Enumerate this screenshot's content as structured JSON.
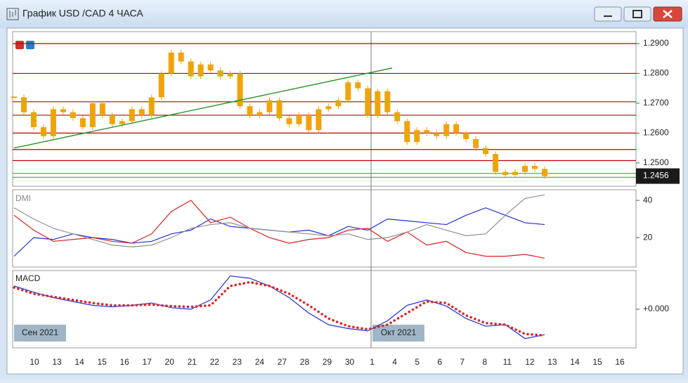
{
  "window": {
    "title": "График USD /CAD  4 ЧАСА"
  },
  "x_labels": [
    "10",
    "13",
    "14",
    "15",
    "16",
    "17",
    "20",
    "21",
    "22",
    "23",
    "24",
    "27",
    "28",
    "29",
    "30",
    "1",
    "4",
    "5",
    "6",
    "7",
    "8",
    "11",
    "12",
    "13",
    "14",
    "15",
    "16"
  ],
  "period_labels": [
    "Сен 2021",
    "Окт 2021"
  ],
  "chart_data": [
    {
      "type": "candlestick",
      "color": "#f0a30a",
      "ylim": [
        1.2422,
        1.294
      ],
      "yticks": [
        {
          "value": 1.29,
          "label": "1.2900"
        },
        {
          "value": 1.28,
          "label": "1.2800"
        },
        {
          "value": 1.27,
          "label": "1.2700"
        },
        {
          "value": 1.26,
          "label": "1.2600"
        },
        {
          "value": 1.25,
          "label": "1.2500"
        }
      ],
      "current_price": 1.2456,
      "red_levels": [
        1.29,
        1.28,
        1.2705,
        1.266,
        1.26,
        1.2545,
        1.2508
      ],
      "green_levels": [
        1.2465,
        1.2452
      ],
      "trendline": [
        1.255,
        1.2818
      ],
      "values": [
        1.272,
        1.267,
        1.262,
        1.259,
        1.268,
        1.267,
        1.265,
        1.262,
        1.27,
        1.266,
        1.263,
        1.264,
        1.268,
        1.266,
        1.272,
        1.28,
        1.287,
        1.284,
        1.279,
        1.283,
        1.281,
        1.279,
        1.28,
        1.269,
        1.266,
        1.267,
        1.271,
        1.265,
        1.263,
        1.266,
        1.261,
        1.268,
        1.269,
        1.271,
        1.277,
        1.275,
        1.266,
        1.274,
        1.267,
        1.264,
        1.257,
        1.261,
        1.26,
        1.259,
        1.263,
        1.26,
        1.258,
        1.255,
        1.253,
        1.247,
        1.246,
        1.247,
        1.249,
        1.248,
        1.2456
      ]
    },
    {
      "type": "line",
      "title": "DMI",
      "ylim": [
        4.2,
        45.7
      ],
      "yticks": [
        40,
        20
      ],
      "series": [
        {
          "color": "#1f2fd0",
          "values": [
            10,
            20,
            19,
            22,
            20,
            19,
            17,
            18,
            22,
            24,
            30,
            26,
            25,
            24,
            23,
            24,
            21,
            26,
            24,
            30,
            29,
            28,
            27,
            32,
            36,
            32,
            28,
            27
          ]
        },
        {
          "color": "#e02020",
          "values": [
            32,
            24,
            18,
            19,
            20,
            18,
            17,
            22,
            34,
            40,
            28,
            31,
            25,
            20,
            17,
            19,
            20,
            24,
            25,
            18,
            23,
            16,
            18,
            12,
            10,
            10,
            11,
            9
          ]
        },
        {
          "color": "#909090",
          "values": [
            36,
            30,
            25,
            22,
            19,
            16,
            15,
            16,
            20,
            25,
            27,
            28,
            25,
            24,
            23,
            22,
            21,
            22,
            19,
            20,
            23,
            27,
            24,
            21,
            22,
            32,
            41,
            43
          ]
        }
      ]
    },
    {
      "type": "line",
      "title": "MACD",
      "ylim": [
        -0.005,
        0.005
      ],
      "yticks": [
        {
          "value": 0,
          "label": "+0.000"
        }
      ],
      "series": [
        {
          "color": "#1f2fd0",
          "values": [
            0.003,
            0.0022,
            0.0015,
            0.001,
            0.0005,
            0.0003,
            0.0005,
            0.0008,
            0.0002,
            0,
            0.0012,
            0.0043,
            0.004,
            0.003,
            0.0015,
            -0.0005,
            -0.002,
            -0.0025,
            -0.0028,
            -0.0015,
            0.0005,
            0.0012,
            0.0004,
            -0.0012,
            -0.0022,
            -0.002,
            -0.0038,
            -0.0033
          ]
        },
        {
          "color": "#e02020",
          "dotted": true,
          "values": [
            0.0028,
            0.002,
            0.0016,
            0.0012,
            0.0008,
            0.0005,
            0.0005,
            0.0006,
            0.0004,
            0.0003,
            0.0005,
            0.003,
            0.0035,
            0.003,
            0.002,
            0.0005,
            -0.0012,
            -0.0022,
            -0.0026,
            -0.002,
            -0.0005,
            0.001,
            0.0008,
            -0.0008,
            -0.0018,
            -0.002,
            -0.0032,
            -0.0034
          ]
        }
      ]
    }
  ]
}
